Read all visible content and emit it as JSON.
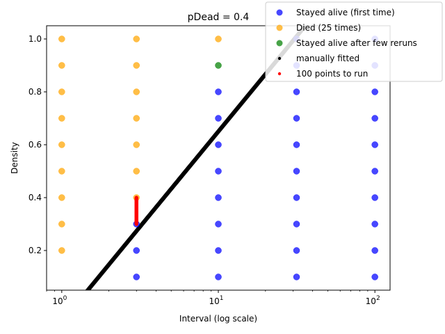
{
  "chart_data": {
    "type": "scatter",
    "title": "pDead = 0.4",
    "xlabel": "Interval (log scale)",
    "ylabel": "Density",
    "xscale": "log",
    "xlim": [
      0.8,
      125
    ],
    "ylim": [
      0.05,
      1.05
    ],
    "x_ticks": [
      {
        "value": 1,
        "base": "10",
        "exp": "0"
      },
      {
        "value": 10,
        "base": "10",
        "exp": "1"
      },
      {
        "value": 100,
        "base": "10",
        "exp": "2"
      }
    ],
    "y_ticks": [
      {
        "value": 0.2,
        "label": "0.2"
      },
      {
        "value": 0.4,
        "label": "0.4"
      },
      {
        "value": 0.6,
        "label": "0.6"
      },
      {
        "value": 0.8,
        "label": "0.8"
      },
      {
        "value": 1.0,
        "label": "1.0"
      }
    ],
    "grid": false,
    "legend_position": "top-right",
    "series": [
      {
        "name": "Stayed alive (first time)",
        "color": "#0000ff",
        "marker": "circle",
        "points": [
          [
            3,
            0.1
          ],
          [
            3,
            0.2
          ],
          [
            3,
            0.3
          ],
          [
            10,
            0.1
          ],
          [
            10,
            0.2
          ],
          [
            10,
            0.3
          ],
          [
            10,
            0.4
          ],
          [
            10,
            0.5
          ],
          [
            10,
            0.6
          ],
          [
            10,
            0.7
          ],
          [
            10,
            0.8
          ],
          [
            31.6,
            0.1
          ],
          [
            31.6,
            0.2
          ],
          [
            31.6,
            0.3
          ],
          [
            31.6,
            0.4
          ],
          [
            31.6,
            0.5
          ],
          [
            31.6,
            0.6
          ],
          [
            31.6,
            0.7
          ],
          [
            31.6,
            0.8
          ],
          [
            31.6,
            0.9
          ],
          [
            31.6,
            1.0
          ],
          [
            100,
            0.1
          ],
          [
            100,
            0.2
          ],
          [
            100,
            0.3
          ],
          [
            100,
            0.4
          ],
          [
            100,
            0.5
          ],
          [
            100,
            0.6
          ],
          [
            100,
            0.7
          ],
          [
            100,
            0.8
          ],
          [
            100,
            0.9
          ],
          [
            100,
            1.0
          ]
        ]
      },
      {
        "name": "Died (25 times)",
        "color": "#ffa500",
        "marker": "circle",
        "points": [
          [
            1,
            0.2
          ],
          [
            1,
            0.3
          ],
          [
            1,
            0.4
          ],
          [
            1,
            0.5
          ],
          [
            1,
            0.6
          ],
          [
            1,
            0.7
          ],
          [
            1,
            0.8
          ],
          [
            1,
            0.9
          ],
          [
            1,
            1.0
          ],
          [
            3,
            0.4
          ],
          [
            3,
            0.5
          ],
          [
            3,
            0.6
          ],
          [
            3,
            0.7
          ],
          [
            3,
            0.8
          ],
          [
            3,
            0.9
          ],
          [
            3,
            1.0
          ],
          [
            10,
            1.0
          ]
        ]
      },
      {
        "name": "Stayed alive after few reruns",
        "color": "#008000",
        "marker": "circle",
        "points": [
          [
            10,
            0.9
          ]
        ]
      },
      {
        "name": "manually fitted",
        "color": "#000000",
        "marker": "line",
        "line": {
          "x_start": 1.0,
          "x_end": 125,
          "slope_per_decade": 0.72,
          "intercept_at_x1": -0.07
        }
      },
      {
        "name": "100 points to run",
        "color": "#ff0000",
        "marker": "dot",
        "segment": {
          "x": 3,
          "y_min": 0.3,
          "y_max": 0.4,
          "count": 100
        }
      }
    ]
  }
}
